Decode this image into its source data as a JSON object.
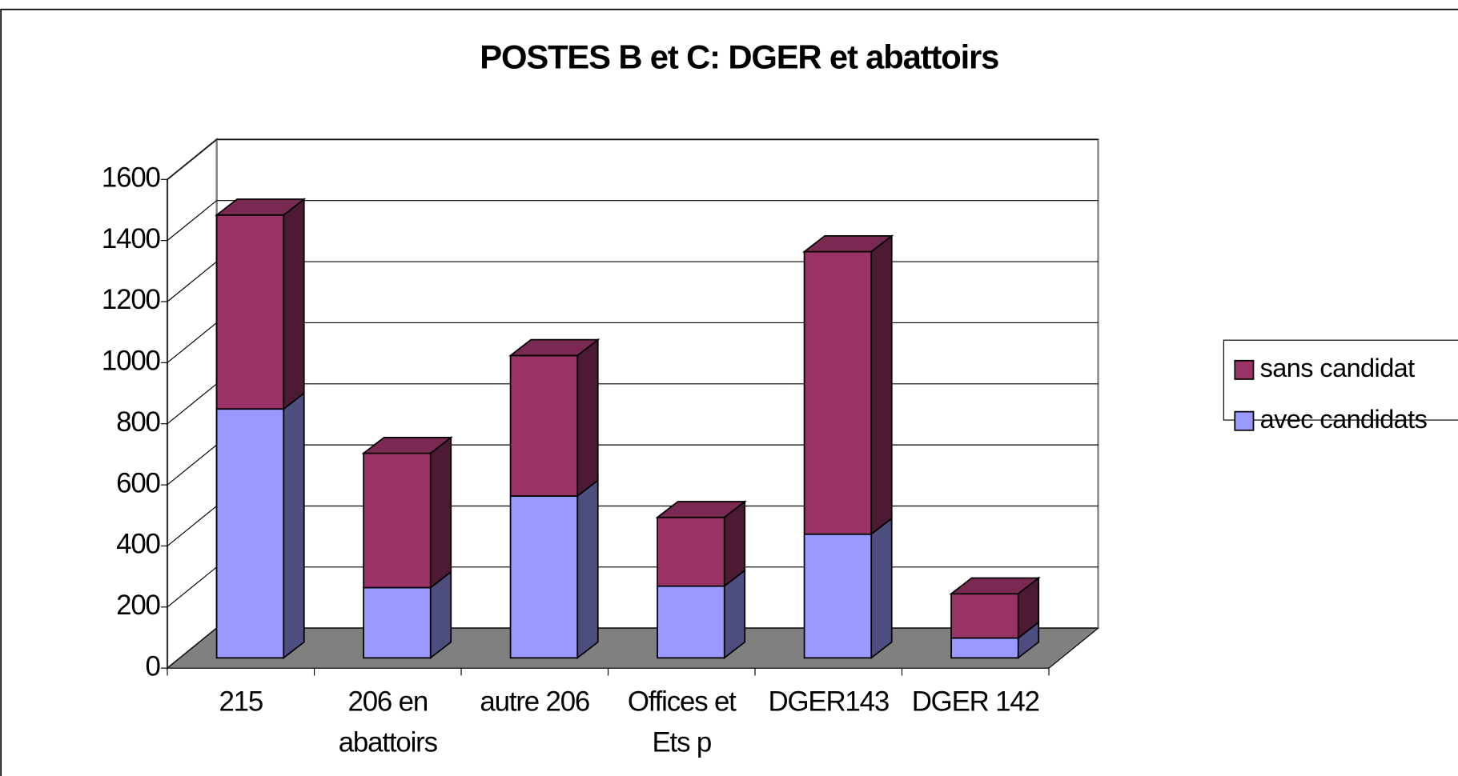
{
  "chart_data": {
    "type": "bar3d_stacked",
    "title": "POSTES B et C: DGER et abattoirs",
    "categories": [
      "215",
      "206 en abattoirs",
      "autre 206",
      "Offices et Ets p",
      "DGER143",
      "DGER 142"
    ],
    "series": [
      {
        "name": "avec candidats",
        "color": "#9999ff",
        "values": [
          815,
          230,
          530,
          235,
          405,
          65
        ]
      },
      {
        "name": "sans candidat",
        "color": "#993366",
        "values": [
          635,
          440,
          460,
          225,
          925,
          145
        ]
      }
    ],
    "ylim": [
      0,
      1600
    ],
    "yticks": [
      0,
      200,
      400,
      600,
      800,
      1000,
      1200,
      1400,
      1600
    ],
    "grid": true,
    "legend": "right"
  }
}
